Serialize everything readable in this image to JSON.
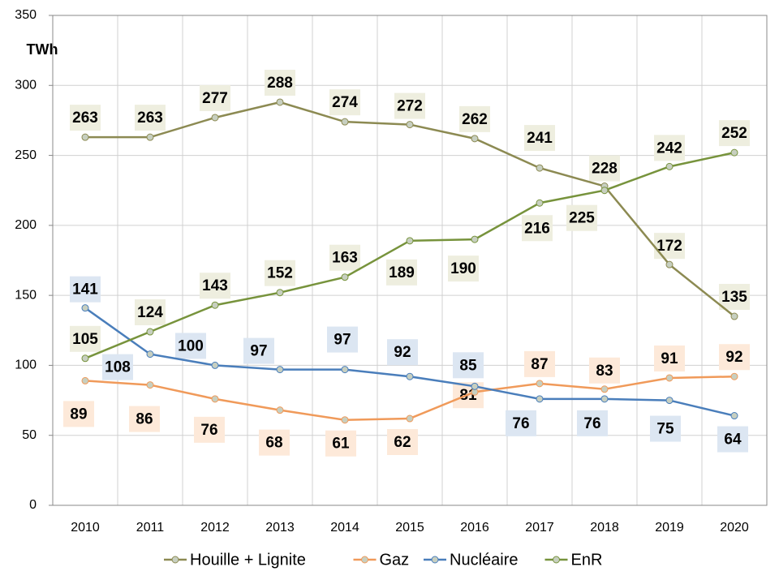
{
  "chart_data": {
    "type": "line",
    "y_unit": "TWh",
    "categories": [
      "2010",
      "2011",
      "2012",
      "2013",
      "2014",
      "2015",
      "2016",
      "2017",
      "2018",
      "2019",
      "2020"
    ],
    "series": [
      {
        "name": "Houille + Lignite",
        "color": "#8c8a52",
        "label_bg": "#eeeedf",
        "values": [
          263,
          263,
          277,
          288,
          274,
          272,
          262,
          241,
          228,
          172,
          135
        ]
      },
      {
        "name": "Gaz",
        "color": "#f09a5a",
        "label_bg": "#fde9d9",
        "values": [
          89,
          86,
          76,
          68,
          61,
          62,
          81,
          87,
          83,
          91,
          92
        ]
      },
      {
        "name": "Nucléaire",
        "color": "#4a7ebb",
        "label_bg": "#dce6f2",
        "values": [
          141,
          108,
          100,
          97,
          97,
          92,
          85,
          76,
          76,
          75,
          64
        ]
      },
      {
        "name": "EnR",
        "color": "#77933c",
        "label_bg": "#eeeedf",
        "values": [
          105,
          124,
          143,
          152,
          163,
          189,
          190,
          216,
          225,
          242,
          252
        ]
      }
    ],
    "ylim": [
      0,
      350
    ],
    "yticks": [
      0,
      50,
      100,
      150,
      200,
      250,
      300,
      350
    ],
    "grid": true
  }
}
